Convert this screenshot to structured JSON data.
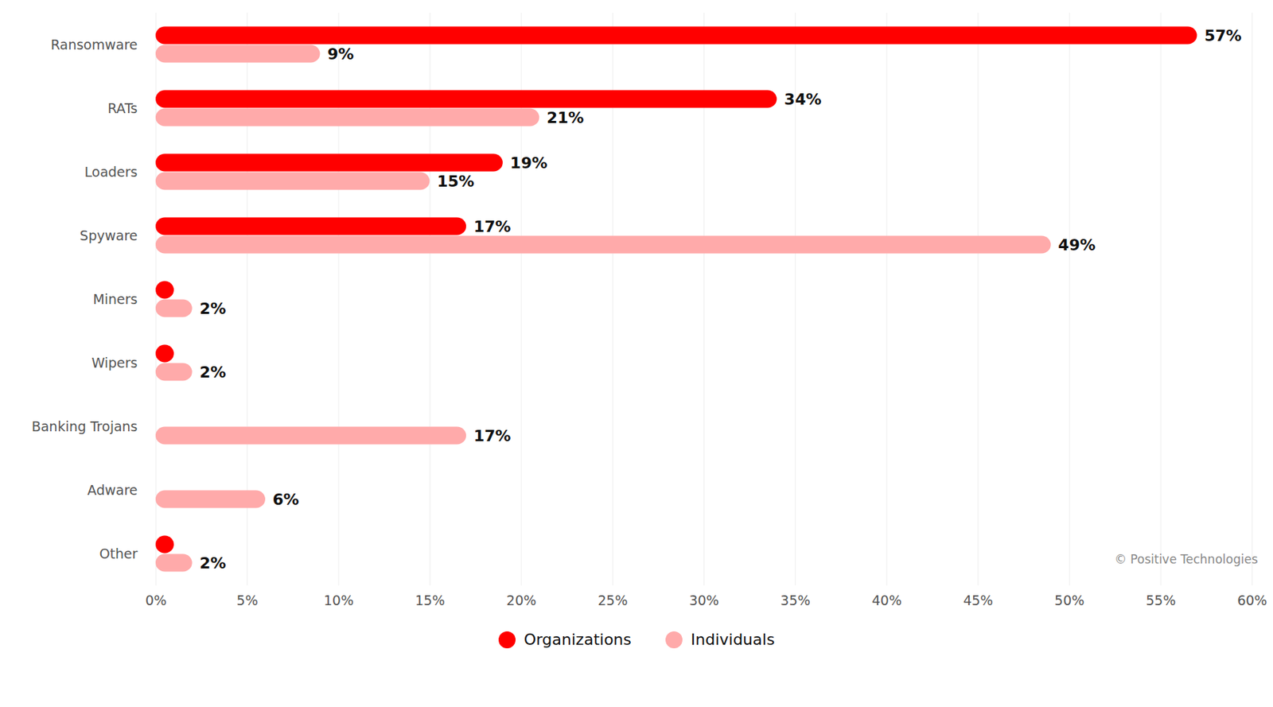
{
  "chart_data": {
    "type": "bar",
    "orientation": "horizontal",
    "categories": [
      "Ransomware",
      "RATs",
      "Loaders",
      "Spyware",
      "Miners",
      "Wipers",
      "Banking Trojans",
      "Adware",
      "Other"
    ],
    "series": [
      {
        "name": "Organizations",
        "color": "#ff0000",
        "values": [
          57,
          34,
          19,
          17,
          1,
          1,
          null,
          null,
          1
        ],
        "value_labels": [
          "57%",
          "34%",
          "19%",
          "17%",
          null,
          null,
          null,
          null,
          null
        ]
      },
      {
        "name": "Individuals",
        "color": "#ffaaaa",
        "values": [
          9,
          21,
          15,
          49,
          2,
          2,
          17,
          6,
          2
        ],
        "value_labels": [
          "9%",
          "21%",
          "15%",
          "49%",
          "2%",
          "2%",
          "17%",
          "6%",
          "2%"
        ]
      }
    ],
    "xlim": [
      0,
      60
    ],
    "xticks": [
      {
        "value": 0,
        "label": "0%"
      },
      {
        "value": 5,
        "label": "5%"
      },
      {
        "value": 10,
        "label": "10%"
      },
      {
        "value": 15,
        "label": "15%"
      },
      {
        "value": 20,
        "label": "20%"
      },
      {
        "value": 25,
        "label": "25%"
      },
      {
        "value": 30,
        "label": "30%"
      },
      {
        "value": 35,
        "label": "35%"
      },
      {
        "value": 40,
        "label": "40%"
      },
      {
        "value": 45,
        "label": "45%"
      },
      {
        "value": 50,
        "label": "50%"
      },
      {
        "value": 55,
        "label": "55%"
      },
      {
        "value": 60,
        "label": "60%"
      }
    ],
    "grid": true,
    "data_labels": true,
    "legend": "bottom",
    "annotations": [
      "© Positive Technologies"
    ]
  }
}
